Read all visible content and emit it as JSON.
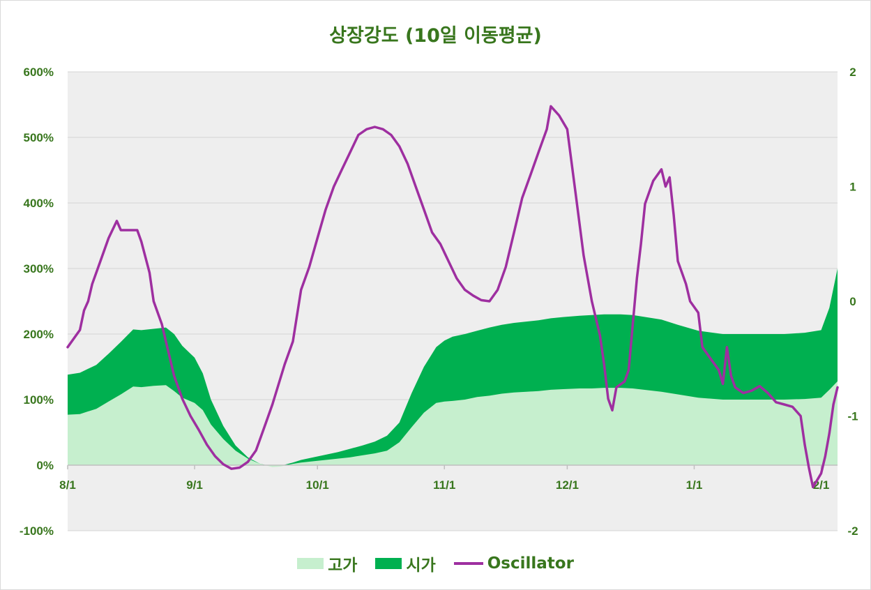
{
  "chart_data": {
    "type": "area",
    "title": "상장강도 (10일 이동평균)",
    "x_labels": [
      "8/1",
      "9/1",
      "10/1",
      "11/1",
      "12/1",
      "1/1",
      "2/1"
    ],
    "x_label_days": [
      0,
      31,
      61,
      92,
      122,
      153,
      184
    ],
    "x_end_day": 188,
    "y_left": {
      "ticks": [
        "600%",
        "500%",
        "400%",
        "300%",
        "200%",
        "100%",
        "0%",
        "-100%"
      ],
      "min": -100,
      "max": 600,
      "step": 100
    },
    "y_right": {
      "ticks": [
        "2",
        "1",
        "0",
        "-1",
        "-2"
      ],
      "min": -2,
      "max": 2,
      "step": 1
    },
    "legend": [
      "고가",
      "시가",
      "Oscillator"
    ],
    "colors": {
      "high": "#c6efce",
      "open": "#00b050",
      "osc": "#9e2fa0",
      "text": "#38761d",
      "plot_bg": "#eeeeee"
    },
    "series": [
      {
        "name": "고가",
        "axis": "left",
        "points": [
          [
            0,
            77
          ],
          [
            3,
            78
          ],
          [
            5,
            82
          ],
          [
            7,
            86
          ],
          [
            10,
            97
          ],
          [
            13,
            108
          ],
          [
            16,
            120
          ],
          [
            18,
            119
          ],
          [
            21,
            121
          ],
          [
            24,
            122
          ],
          [
            26,
            113
          ],
          [
            28,
            103
          ],
          [
            31,
            95
          ],
          [
            33,
            84
          ],
          [
            35,
            62
          ],
          [
            38,
            40
          ],
          [
            41,
            22
          ],
          [
            44,
            10
          ],
          [
            47,
            2
          ],
          [
            50,
            -3
          ],
          [
            52,
            -2
          ],
          [
            55,
            2
          ],
          [
            57,
            4
          ],
          [
            60,
            6
          ],
          [
            63,
            8
          ],
          [
            66,
            10
          ],
          [
            69,
            12
          ],
          [
            72,
            15
          ],
          [
            75,
            18
          ],
          [
            78,
            22
          ],
          [
            81,
            35
          ],
          [
            84,
            58
          ],
          [
            87,
            80
          ],
          [
            90,
            95
          ],
          [
            92,
            97
          ],
          [
            94,
            98
          ],
          [
            97,
            100
          ],
          [
            100,
            104
          ],
          [
            103,
            106
          ],
          [
            106,
            109
          ],
          [
            109,
            111
          ],
          [
            112,
            112
          ],
          [
            115,
            113
          ],
          [
            118,
            115
          ],
          [
            121,
            116
          ],
          [
            125,
            117
          ],
          [
            128,
            117
          ],
          [
            131,
            118
          ],
          [
            135,
            118
          ],
          [
            138,
            117
          ],
          [
            145,
            112
          ],
          [
            149,
            108
          ],
          [
            154,
            103
          ],
          [
            160,
            100
          ],
          [
            165,
            100
          ],
          [
            170,
            100
          ],
          [
            175,
            100
          ],
          [
            180,
            101
          ],
          [
            184,
            103
          ],
          [
            186,
            115
          ],
          [
            188,
            128
          ]
        ]
      },
      {
        "name": "시가",
        "axis": "left",
        "points": [
          [
            0,
            138
          ],
          [
            3,
            141
          ],
          [
            5,
            147
          ],
          [
            7,
            153
          ],
          [
            10,
            170
          ],
          [
            13,
            188
          ],
          [
            16,
            207
          ],
          [
            18,
            206
          ],
          [
            21,
            208
          ],
          [
            24,
            210
          ],
          [
            26,
            200
          ],
          [
            28,
            182
          ],
          [
            31,
            164
          ],
          [
            33,
            140
          ],
          [
            35,
            100
          ],
          [
            38,
            60
          ],
          [
            41,
            30
          ],
          [
            44,
            12
          ],
          [
            47,
            2
          ],
          [
            50,
            -2
          ],
          [
            52,
            -1
          ],
          [
            55,
            4
          ],
          [
            57,
            8
          ],
          [
            60,
            12
          ],
          [
            63,
            16
          ],
          [
            66,
            20
          ],
          [
            69,
            25
          ],
          [
            72,
            30
          ],
          [
            75,
            36
          ],
          [
            78,
            45
          ],
          [
            81,
            65
          ],
          [
            84,
            110
          ],
          [
            87,
            150
          ],
          [
            90,
            180
          ],
          [
            92,
            190
          ],
          [
            94,
            196
          ],
          [
            97,
            200
          ],
          [
            100,
            205
          ],
          [
            103,
            210
          ],
          [
            106,
            214
          ],
          [
            109,
            217
          ],
          [
            112,
            219
          ],
          [
            115,
            221
          ],
          [
            118,
            224
          ],
          [
            121,
            226
          ],
          [
            125,
            228
          ],
          [
            128,
            229
          ],
          [
            131,
            230
          ],
          [
            135,
            230
          ],
          [
            138,
            229
          ],
          [
            145,
            222
          ],
          [
            149,
            214
          ],
          [
            154,
            205
          ],
          [
            160,
            200
          ],
          [
            165,
            200
          ],
          [
            170,
            200
          ],
          [
            175,
            200
          ],
          [
            180,
            202
          ],
          [
            184,
            206
          ],
          [
            186,
            240
          ],
          [
            188,
            300
          ]
        ]
      },
      {
        "name": "Oscillator",
        "axis": "right",
        "points": [
          [
            0,
            -0.4
          ],
          [
            3,
            -0.25
          ],
          [
            4,
            -0.08
          ],
          [
            5,
            0
          ],
          [
            6,
            0.15
          ],
          [
            8,
            0.35
          ],
          [
            10,
            0.55
          ],
          [
            12,
            0.7
          ],
          [
            13,
            0.62
          ],
          [
            17,
            0.62
          ],
          [
            18,
            0.52
          ],
          [
            20,
            0.25
          ],
          [
            21,
            0.0
          ],
          [
            23,
            -0.2
          ],
          [
            24,
            -0.35
          ],
          [
            26,
            -0.65
          ],
          [
            28,
            -0.85
          ],
          [
            30,
            -1.0
          ],
          [
            32,
            -1.12
          ],
          [
            34,
            -1.25
          ],
          [
            36,
            -1.35
          ],
          [
            38,
            -1.42
          ],
          [
            40,
            -1.46
          ],
          [
            42,
            -1.45
          ],
          [
            44,
            -1.4
          ],
          [
            46,
            -1.3
          ],
          [
            48,
            -1.1
          ],
          [
            50,
            -0.9
          ],
          [
            53,
            -0.55
          ],
          [
            55,
            -0.35
          ],
          [
            57,
            0.1
          ],
          [
            59,
            0.3
          ],
          [
            61,
            0.55
          ],
          [
            63,
            0.8
          ],
          [
            65,
            1.0
          ],
          [
            67,
            1.15
          ],
          [
            69,
            1.3
          ],
          [
            71,
            1.45
          ],
          [
            73,
            1.5
          ],
          [
            75,
            1.52
          ],
          [
            77,
            1.5
          ],
          [
            79,
            1.45
          ],
          [
            81,
            1.35
          ],
          [
            83,
            1.2
          ],
          [
            85,
            1.0
          ],
          [
            87,
            0.8
          ],
          [
            89,
            0.6
          ],
          [
            91,
            0.5
          ],
          [
            93,
            0.35
          ],
          [
            95,
            0.2
          ],
          [
            97,
            0.1
          ],
          [
            99,
            0.05
          ],
          [
            101,
            0.01
          ],
          [
            103,
            0.0
          ],
          [
            105,
            0.1
          ],
          [
            107,
            0.3
          ],
          [
            109,
            0.6
          ],
          [
            111,
            0.9
          ],
          [
            113,
            1.1
          ],
          [
            115,
            1.3
          ],
          [
            117,
            1.5
          ],
          [
            118,
            1.7
          ],
          [
            120,
            1.62
          ],
          [
            122,
            1.5
          ],
          [
            124,
            0.95
          ],
          [
            126,
            0.4
          ],
          [
            128,
            0.0
          ],
          [
            130,
            -0.3
          ],
          [
            131,
            -0.55
          ],
          [
            132,
            -0.85
          ],
          [
            133,
            -0.95
          ],
          [
            134,
            -0.75
          ],
          [
            136,
            -0.7
          ],
          [
            137,
            -0.6
          ],
          [
            138,
            -0.2
          ],
          [
            139,
            0.2
          ],
          [
            140,
            0.5
          ],
          [
            141,
            0.85
          ],
          [
            143,
            1.05
          ],
          [
            145,
            1.15
          ],
          [
            146,
            1.0
          ],
          [
            147,
            1.08
          ],
          [
            148,
            0.75
          ],
          [
            149,
            0.35
          ],
          [
            151,
            0.15
          ],
          [
            152,
            0.0
          ],
          [
            154,
            -0.1
          ],
          [
            155,
            -0.4
          ],
          [
            157,
            -0.5
          ],
          [
            159,
            -0.6
          ],
          [
            160,
            -0.72
          ],
          [
            161,
            -0.4
          ],
          [
            162,
            -0.65
          ],
          [
            163,
            -0.75
          ],
          [
            165,
            -0.8
          ],
          [
            167,
            -0.78
          ],
          [
            169,
            -0.74
          ],
          [
            171,
            -0.8
          ],
          [
            173,
            -0.88
          ],
          [
            175,
            -0.9
          ],
          [
            177,
            -0.92
          ],
          [
            179,
            -1.0
          ],
          [
            180,
            -1.25
          ],
          [
            181,
            -1.45
          ],
          [
            182,
            -1.62
          ],
          [
            184,
            -1.5
          ],
          [
            185,
            -1.35
          ],
          [
            186,
            -1.15
          ],
          [
            187,
            -0.9
          ],
          [
            188,
            -0.75
          ]
        ]
      }
    ]
  }
}
